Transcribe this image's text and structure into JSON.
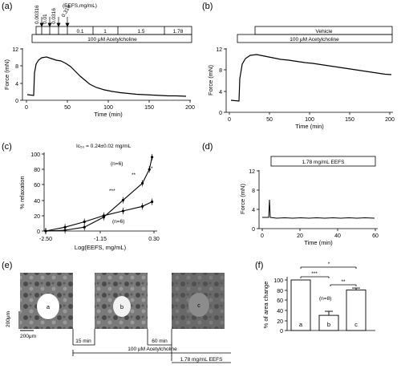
{
  "panels": {
    "a": {
      "label": "(a)",
      "conc_title": "(EEFS,mg/mL)",
      "doses": [
        "0.00316",
        "0.01",
        "0.0316",
        "0.316"
      ],
      "boxes": [
        "0.1",
        "1",
        "1.5",
        "1.78"
      ],
      "ach_label": "100 μM Acetylcholine",
      "ylabel": "Force (mN)",
      "xlabel": "Time (min)",
      "yticks": [
        "0",
        "4",
        "8",
        "12"
      ],
      "xticks": [
        "0",
        "50",
        "100",
        "150",
        "200"
      ]
    },
    "b": {
      "label": "(b)",
      "vehicle_label": "Vehicle",
      "ach_label": "100 μM Acetylcholine",
      "ylabel": "Force (mN)",
      "xlabel": "Time (min)",
      "yticks": [
        "0",
        "4",
        "8",
        "12"
      ],
      "xticks": [
        "0",
        "50",
        "100",
        "150",
        "200"
      ]
    },
    "c": {
      "label": "(c)",
      "ic50": "Ic₅₀ = 0.24±0.02 mg/mL",
      "ylabel": "% relaxation",
      "xlabel": "Log(EEFS, mg/mL)",
      "yticks": [
        "0",
        "20",
        "40",
        "60",
        "80",
        "100"
      ],
      "xticks": [
        "-2.50",
        "-1.15",
        "0.30"
      ],
      "n_upper": "(n=6)",
      "n_lower": "(n=6)",
      "star3": "***",
      "star2": "**",
      "star1": "*"
    },
    "d": {
      "label": "(d)",
      "box_label": "1.78 mg/mL EEFS",
      "ylabel": "Force (mN)",
      "xlabel": "Time (min)",
      "yticks": [
        "0",
        "4",
        "8",
        "12"
      ],
      "xticks": [
        "0",
        "20",
        "40",
        "60"
      ]
    },
    "e": {
      "label": "(e)",
      "img_labels": [
        "a",
        "b",
        "c"
      ],
      "scale_v": "200μm",
      "scale_h": "200μm",
      "gap1": "15 min",
      "gap2": "60 min",
      "ach_label": "100 μM Acetylcholine",
      "eefs_label": "1.78 mg/mL EEFS"
    },
    "f": {
      "label": "(f)",
      "ylabel": "% of area change",
      "yticks": [
        "0",
        "20",
        "40",
        "60",
        "80",
        "100"
      ],
      "bar_labels": [
        "a",
        "b",
        "c"
      ],
      "n_label": "(n=8)",
      "sig_ab": "***",
      "sig_bc": "**",
      "sig_ac": "*"
    }
  },
  "chart_data": [
    {
      "panel": "c",
      "type": "line",
      "xlabel": "Log(EEFS, mg/mL)",
      "ylabel": "% relaxation",
      "xlim": [
        -2.5,
        0.3
      ],
      "ylim": [
        0,
        100
      ],
      "series": [
        {
          "x": [
            -2.5,
            -2.0,
            -1.5,
            -1.0,
            -0.5,
            0.0,
            0.18,
            0.25
          ],
          "y": [
            0,
            1,
            5,
            18,
            40,
            62,
            80,
            96
          ]
        },
        {
          "x": [
            -2.5,
            -2.0,
            -1.5,
            -1.0,
            -0.5,
            0.0,
            0.25
          ],
          "y": [
            0,
            5,
            12,
            20,
            26,
            32,
            38
          ]
        }
      ]
    },
    {
      "panel": "f",
      "type": "bar",
      "categories": [
        "a",
        "b",
        "c"
      ],
      "values": [
        100,
        30,
        80
      ],
      "errors": [
        0,
        8,
        4
      ],
      "ylim": [
        0,
        100
      ]
    }
  ]
}
